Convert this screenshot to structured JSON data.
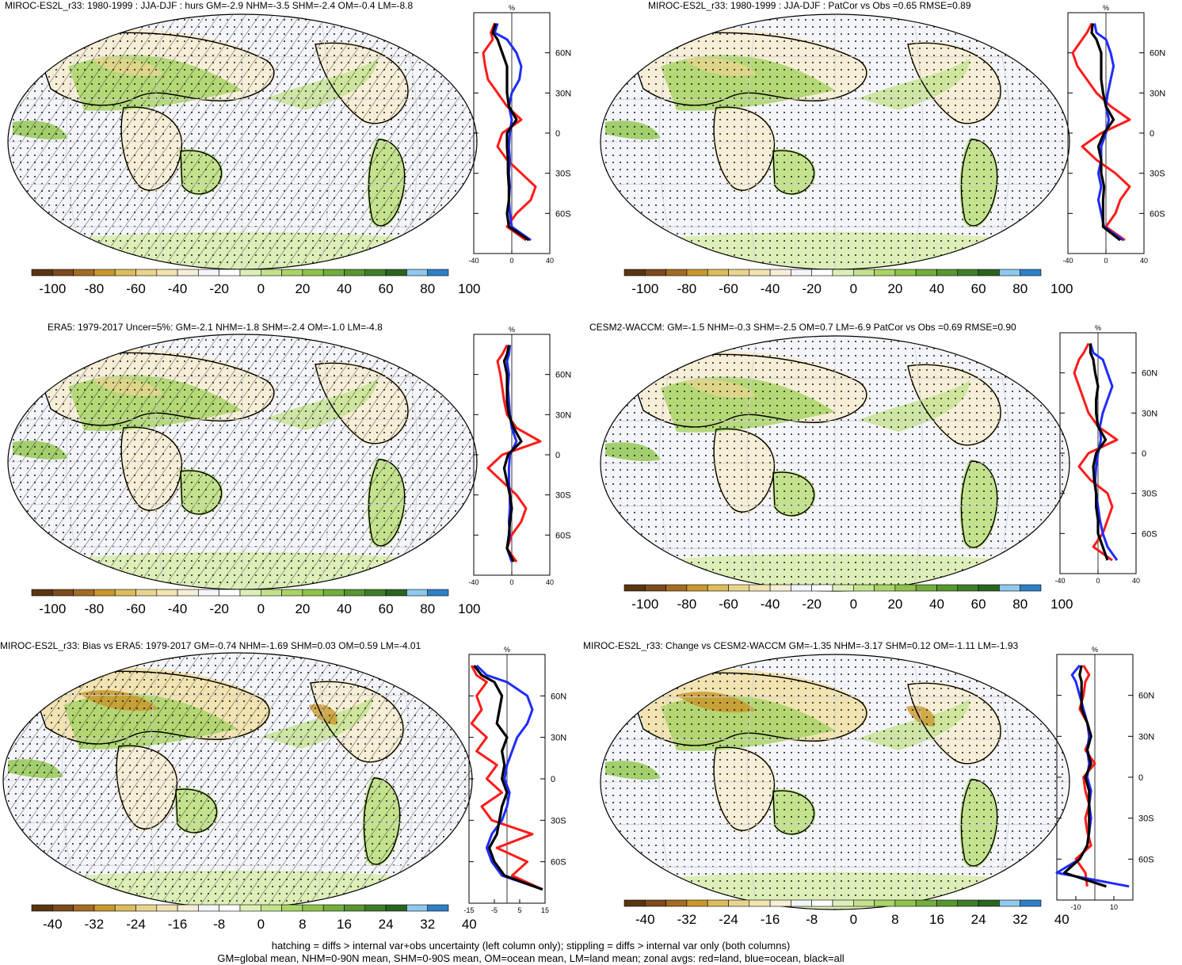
{
  "colors": {
    "land_line": "#ff1a1a",
    "ocean_line": "#1f2cff",
    "all_line": "#000000",
    "palette": [
      "#5a3511",
      "#7d4b1c",
      "#a46b24",
      "#c8982e",
      "#dcbd5c",
      "#e9d48e",
      "#f1e3b2",
      "#f6eed6",
      "#f4f5fa",
      "#ffffff",
      "#ddeeb8",
      "#c4e28e",
      "#a9d466",
      "#8fc44b",
      "#72ad3d",
      "#579631",
      "#3f7e29",
      "#2a6520",
      "#8ec8ee",
      "#2f7fc7"
    ]
  },
  "panels": [
    {
      "title": "MIROC-ES2L_r33: 1980-1999 : JJA-DJF : hurs GM=-2.9 NHM=-3.5 SHM=-2.4 OM=-0.4 LM=-8.8",
      "colorbar_labels": [
        "-100",
        "-80",
        "-60",
        "-40",
        "-20",
        "0",
        "20",
        "40",
        "60",
        "80",
        "100"
      ],
      "zonal_unit": "%",
      "zonal_xticks": [
        "-40",
        "0",
        "40"
      ],
      "lat_labels": [
        "60N",
        "30N",
        "0",
        "30S",
        "60S"
      ]
    },
    {
      "title": "MIROC-ES2L_r33: 1980-1999 : JJA-DJF : PatCor vs Obs =0.65 RMSE=0.89",
      "colorbar_labels": [
        "-100",
        "-80",
        "-60",
        "-40",
        "-20",
        "0",
        "20",
        "40",
        "60",
        "80",
        "100"
      ],
      "zonal_unit": "%",
      "zonal_xticks": [
        "-40",
        "0",
        "40"
      ],
      "lat_labels": [
        "60N",
        "30N",
        "0",
        "30S",
        "60S"
      ]
    },
    {
      "title": "ERA5: 1979-2017 Uncer=5%: GM=-2.1 NHM=-1.8 SHM=-2.4 OM=-1.0 LM=-4.8",
      "colorbar_labels": [
        "-100",
        "-80",
        "-60",
        "-40",
        "-20",
        "0",
        "20",
        "40",
        "60",
        "80",
        "100"
      ],
      "zonal_unit": "%",
      "zonal_xticks": [
        "-40",
        "0",
        "40"
      ],
      "lat_labels": [
        "60N",
        "30N",
        "0",
        "30S",
        "60S"
      ]
    },
    {
      "title": "CESM2-WACCM: GM=-1.5 NHM=-0.3 SHM=-2.5 OM=0.7 LM=-6.9 PatCor vs Obs =0.69 RMSE=0.90",
      "colorbar_labels": [
        "-100",
        "-80",
        "-60",
        "-40",
        "-20",
        "0",
        "20",
        "40",
        "60",
        "80",
        "100"
      ],
      "zonal_unit": "%",
      "zonal_xticks": [
        "-40",
        "0",
        "40"
      ],
      "lat_labels": [
        "60N",
        "30N",
        "0",
        "30S",
        "60S"
      ]
    },
    {
      "title": "MIROC-ES2L_r33: Bias vs ERA5: 1979-2017 GM=-0.74 NHM=-1.69 SHM=0.03 OM=0.59 LM=-4.01",
      "colorbar_labels": [
        "-40",
        "-32",
        "-24",
        "-16",
        "-8",
        "0",
        "8",
        "16",
        "24",
        "32",
        "40"
      ],
      "zonal_unit": "%",
      "zonal_xticks": [
        "-15",
        "-5",
        "5",
        "15"
      ],
      "lat_labels": [
        "60N",
        "30N",
        "0",
        "30S",
        "60S"
      ]
    },
    {
      "title": "MIROC-ES2L_r33: Change vs CESM2-WACCM GM=-1.35 NHM=-3.17 SHM=0.12 OM=-1.11 LM=-1.93",
      "colorbar_labels": [
        "-40",
        "-32",
        "-24",
        "-16",
        "-8",
        "0",
        "8",
        "16",
        "24",
        "32",
        "40"
      ],
      "zonal_unit": "%",
      "zonal_xticks": [
        "-10",
        "10"
      ],
      "lat_labels": [
        "60N",
        "30N",
        "0",
        "30S",
        "60S"
      ]
    }
  ],
  "footer": {
    "line1": "hatching = diffs > internal var+obs uncertainty (left column only); stippling = diffs > internal var only (both columns)",
    "line2": "GM=global mean, NHM=0-90N mean, SHM=0-90S mean, OM=ocean mean, LM=land mean; zonal avgs: red=land, blue=ocean, black=all"
  },
  "chart_data": [
    {
      "type": "line",
      "title": "MIROC-ES2L_r33: 1980-1999 : JJA-DJF : hurs GM=-2.9 NHM=-3.5 SHM=-2.4 OM=-0.4 LM=-8.8",
      "xlabel": "%",
      "xlim": [
        -40,
        40
      ],
      "ylim": [
        -90,
        90
      ],
      "y_ticks": [
        "60N",
        "30N",
        "0",
        "30S",
        "60S"
      ],
      "colorbar_range": [
        -100,
        100
      ],
      "series": [
        {
          "y": [
            82,
            75,
            70,
            60,
            50,
            40,
            30,
            20,
            10,
            0,
            -10,
            -20,
            -30,
            -40,
            -50,
            -60,
            -70,
            -80
          ],
          "values": [
            -18,
            -22,
            -20,
            -30,
            -28,
            -25,
            -15,
            -5,
            10,
            -10,
            -15,
            -5,
            10,
            25,
            20,
            5,
            -5,
            15
          ]
        },
        {
          "y": [
            82,
            75,
            70,
            60,
            50,
            40,
            30,
            20,
            10,
            0,
            -10,
            -20,
            -30,
            -40,
            -50,
            -60,
            -70,
            -80
          ],
          "values": [
            -15,
            -18,
            -5,
            5,
            10,
            8,
            0,
            -3,
            0,
            -2,
            -3,
            -2,
            -3,
            -2,
            -3,
            -2,
            0,
            20
          ]
        },
        {
          "y": [
            82,
            75,
            70,
            60,
            50,
            40,
            30,
            20,
            10,
            0,
            -10,
            -20,
            -30,
            -40,
            -50,
            -60,
            -70,
            -80
          ],
          "values": [
            -17,
            -20,
            -15,
            -10,
            -5,
            -5,
            -5,
            -3,
            5,
            -5,
            -5,
            -4,
            -4,
            -3,
            -3,
            -5,
            -3,
            18
          ]
        }
      ]
    },
    {
      "type": "line",
      "title": "MIROC-ES2L_r33: 1980-1999 : JJA-DJF : PatCor vs Obs =0.65 RMSE=0.89",
      "xlabel": "%",
      "xlim": [
        -40,
        40
      ],
      "ylim": [
        -90,
        90
      ],
      "y_ticks": [
        "60N",
        "30N",
        "0",
        "30S",
        "60S"
      ],
      "colorbar_range": [
        -100,
        100
      ],
      "series": [
        {
          "y": [
            82,
            75,
            70,
            60,
            50,
            40,
            30,
            20,
            10,
            0,
            -10,
            -20,
            -30,
            -40,
            -50,
            -60,
            -70,
            -80
          ],
          "values": [
            -15,
            -20,
            -25,
            -35,
            -30,
            -20,
            -10,
            5,
            25,
            -5,
            -25,
            -10,
            10,
            25,
            15,
            10,
            0,
            20
          ]
        },
        {
          "y": [
            82,
            75,
            70,
            60,
            50,
            40,
            30,
            20,
            10,
            0,
            -10,
            -20,
            -30,
            -40,
            -50,
            -60,
            -70,
            -80
          ],
          "values": [
            -12,
            -10,
            0,
            5,
            8,
            5,
            2,
            0,
            3,
            0,
            -5,
            -5,
            -8,
            -5,
            -8,
            -5,
            -2,
            18
          ]
        },
        {
          "y": [
            82,
            75,
            70,
            60,
            50,
            40,
            30,
            20,
            10,
            0,
            -10,
            -20,
            -30,
            -40,
            -50,
            -60,
            -70,
            -80
          ],
          "values": [
            -14,
            -15,
            -10,
            -5,
            -5,
            -5,
            -3,
            0,
            8,
            -2,
            -8,
            -5,
            -5,
            -2,
            -3,
            -3,
            -3,
            15
          ]
        }
      ]
    },
    {
      "type": "line",
      "title": "ERA5: 1979-2017 Uncer=5%: GM=-2.1 NHM=-1.8 SHM=-2.4 OM=-1.0 LM=-4.8",
      "xlabel": "%",
      "xlim": [
        -40,
        40
      ],
      "ylim": [
        -90,
        90
      ],
      "y_ticks": [
        "60N",
        "30N",
        "0",
        "30S",
        "60S"
      ],
      "colorbar_range": [
        -100,
        100
      ],
      "series": [
        {
          "y": [
            82,
            75,
            70,
            60,
            50,
            40,
            30,
            20,
            10,
            0,
            -10,
            -20,
            -30,
            -40,
            -50,
            -60,
            -70,
            -80
          ],
          "values": [
            -5,
            -10,
            -15,
            -12,
            -10,
            -8,
            -5,
            5,
            30,
            -10,
            -25,
            -10,
            5,
            15,
            10,
            0,
            -5,
            5
          ]
        },
        {
          "y": [
            82,
            75,
            70,
            60,
            50,
            40,
            30,
            20,
            10,
            0,
            -10,
            -20,
            -30,
            -40,
            -50,
            -60,
            -70,
            -80
          ],
          "values": [
            -2,
            -3,
            -5,
            -3,
            -4,
            -3,
            -2,
            0,
            5,
            -2,
            -3,
            -3,
            -2,
            -2,
            -3,
            -2,
            -5,
            0
          ]
        },
        {
          "y": [
            82,
            75,
            70,
            60,
            50,
            40,
            30,
            20,
            10,
            0,
            -10,
            -20,
            -30,
            -40,
            -50,
            -60,
            -70,
            -80
          ],
          "values": [
            -3,
            -5,
            -8,
            -5,
            -5,
            -5,
            -3,
            2,
            10,
            -4,
            -8,
            -5,
            -2,
            0,
            -2,
            -3,
            -5,
            2
          ]
        }
      ]
    },
    {
      "type": "line",
      "title": "CESM2-WACCM: GM=-1.5 NHM=-0.3 SHM=-2.5 OM=0.7 LM=-6.9 PatCor vs Obs =0.69 RMSE=0.90",
      "xlabel": "%",
      "xlim": [
        -40,
        40
      ],
      "ylim": [
        -90,
        90
      ],
      "y_ticks": [
        "60N",
        "30N",
        "0",
        "30S",
        "60S"
      ],
      "colorbar_range": [
        -100,
        100
      ],
      "series": [
        {
          "y": [
            82,
            75,
            70,
            60,
            50,
            40,
            30,
            20,
            10,
            0,
            -10,
            -20,
            -30,
            -40,
            -50,
            -60,
            -70,
            -80
          ],
          "values": [
            -10,
            -15,
            -20,
            -25,
            -20,
            -15,
            -10,
            0,
            20,
            -10,
            -20,
            -8,
            10,
            15,
            10,
            5,
            -5,
            15
          ]
        },
        {
          "y": [
            82,
            75,
            70,
            60,
            50,
            40,
            30,
            20,
            10,
            0,
            -10,
            -20,
            -30,
            -40,
            -50,
            -60,
            -70,
            -80
          ],
          "values": [
            -8,
            -5,
            5,
            10,
            15,
            10,
            5,
            2,
            3,
            0,
            -2,
            -3,
            -2,
            0,
            2,
            5,
            10,
            20
          ]
        },
        {
          "y": [
            82,
            75,
            70,
            60,
            50,
            40,
            30,
            20,
            10,
            0,
            -10,
            -20,
            -30,
            -40,
            -50,
            -60,
            -70,
            -80
          ],
          "values": [
            -8,
            -8,
            -5,
            -3,
            0,
            -2,
            -2,
            0,
            8,
            -2,
            -5,
            -4,
            -2,
            -2,
            0,
            0,
            5,
            10
          ]
        }
      ]
    },
    {
      "type": "line",
      "title": "MIROC-ES2L_r33: Bias vs ERA5: 1979-2017 GM=-0.74 NHM=-1.69 SHM=0.03 OM=0.59 LM=-4.01",
      "xlabel": "%",
      "xlim": [
        -15,
        15
      ],
      "ylim": [
        -90,
        90
      ],
      "y_ticks": [
        "60N",
        "30N",
        "0",
        "30S",
        "60S"
      ],
      "colorbar_range": [
        -40,
        40
      ],
      "series": [
        {
          "y": [
            82,
            75,
            70,
            60,
            50,
            40,
            30,
            20,
            10,
            0,
            -10,
            -20,
            -30,
            -40,
            -50,
            -60,
            -70,
            -80
          ],
          "values": [
            -14,
            -12,
            -8,
            -12,
            -10,
            -14,
            -8,
            -12,
            -4,
            -8,
            -2,
            -10,
            -6,
            10,
            -4,
            8,
            2,
            14
          ]
        },
        {
          "y": [
            82,
            75,
            70,
            60,
            50,
            40,
            30,
            20,
            10,
            0,
            -10,
            -20,
            -30,
            -40,
            -50,
            -60,
            -70,
            -80
          ],
          "values": [
            -12,
            -8,
            0,
            8,
            10,
            8,
            4,
            2,
            0,
            -1,
            1,
            0,
            -2,
            -6,
            -8,
            -6,
            -2,
            14
          ]
        },
        {
          "y": [
            82,
            75,
            70,
            60,
            50,
            40,
            30,
            20,
            10,
            0,
            -10,
            -20,
            -30,
            -40,
            -50,
            -60,
            -70,
            -80
          ],
          "values": [
            -13,
            -10,
            -5,
            -2,
            -3,
            -4,
            0,
            -2,
            -1,
            -2,
            0,
            -2,
            -3,
            -4,
            -7,
            -5,
            -1,
            14
          ]
        }
      ]
    },
    {
      "type": "line",
      "title": "MIROC-ES2L_r33: Change vs CESM2-WACCM GM=-1.35 NHM=-3.17 SHM=0.12 OM=-1.11 LM=-1.93",
      "xlabel": "%",
      "xlim": [
        -20,
        20
      ],
      "ylim": [
        -90,
        90
      ],
      "y_ticks": [
        "60N",
        "30N",
        "0",
        "30S",
        "60S"
      ],
      "colorbar_range": [
        -40,
        40
      ],
      "series": [
        {
          "y": [
            82,
            75,
            70,
            60,
            50,
            40,
            30,
            20,
            10,
            0,
            -10,
            -20,
            -30,
            -40,
            -50,
            -60,
            -70,
            -80
          ],
          "values": [
            -6,
            -3,
            -5,
            -6,
            -8,
            -4,
            -2,
            -5,
            0,
            -6,
            -5,
            -3,
            -5,
            -4,
            -2,
            -10,
            -5,
            -4
          ]
        },
        {
          "y": [
            82,
            75,
            70,
            60,
            50,
            40,
            30,
            20,
            10,
            0,
            -10,
            -20,
            -30,
            -40,
            -50,
            -60,
            -70,
            -80
          ],
          "values": [
            -8,
            -12,
            -10,
            -8,
            -6,
            -4,
            -3,
            -4,
            -3,
            -4,
            -2,
            -3,
            -2,
            -3,
            -4,
            -8,
            -20,
            18
          ]
        },
        {
          "y": [
            82,
            75,
            70,
            60,
            50,
            40,
            30,
            20,
            10,
            0,
            -10,
            -20,
            -30,
            -40,
            -50,
            -60,
            -70,
            -80
          ],
          "values": [
            -7,
            -8,
            -7,
            -7,
            -7,
            -4,
            -2,
            -4,
            -2,
            -5,
            -3,
            -3,
            -3,
            -3,
            -4,
            -8,
            -16,
            6
          ]
        }
      ]
    }
  ]
}
